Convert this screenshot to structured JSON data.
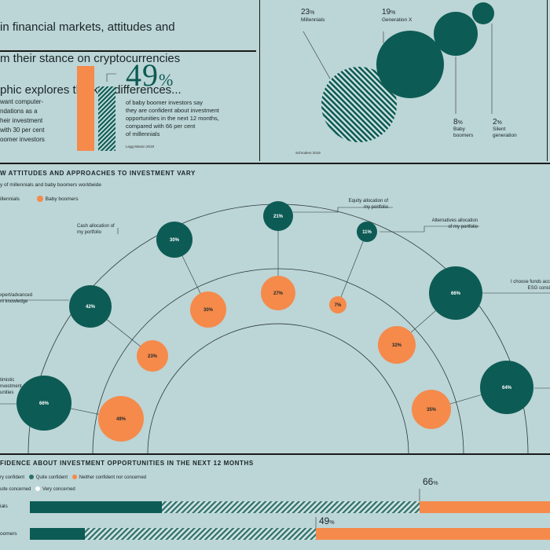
{
  "intro": {
    "line1": "in financial markets, attitudes and",
    "line2": "m their stance on cryptocurrencies",
    "line3": "phic explores the key differences..."
  },
  "confidence_panel": {
    "left_text": "want computer-\nndations as a\nheir investment\nwith 30 per cent\noomer investors",
    "big_value": "49",
    "big_unit": "%",
    "description": "of baby boomer investors say\nthey are confident about investment\nopportunities in the next 12 months,\ncompared with 66 per cent\nof millennials",
    "source": "Legg Mason 2019"
  },
  "crypto_panel": {
    "items": [
      {
        "value": "23",
        "unit": "%",
        "label": "Millennials"
      },
      {
        "value": "19",
        "unit": "%",
        "label": "Generation X"
      },
      {
        "value": "8",
        "unit": "%",
        "label": "Baby\nboomers"
      },
      {
        "value": "2",
        "unit": "%",
        "label": "Silent\ngeneration"
      }
    ],
    "source": "Schroders 2019"
  },
  "attitudes": {
    "title": "W ATTITUDES AND APPROACHES TO INVESTMENT VARY",
    "subtitle": "y of millennials and baby boomers worldwide",
    "legend": [
      {
        "label": "illennials",
        "color": "#0d5b55"
      },
      {
        "label": "Baby boomers",
        "color": "#f58a4b"
      }
    ],
    "categories": [
      {
        "label": "Equity allocation of\nmy portfolio",
        "millennials": "21%",
        "boomers": "27%"
      },
      {
        "label": "Cash allocation of\nmy portfolio",
        "millennials": "30%",
        "boomers": "30%"
      },
      {
        "label": "Alternatives allocation\nof my portfolio",
        "millennials": "11%",
        "boomers": "7%"
      },
      {
        "label": "xpert/advanced\nnt knowledge",
        "millennials": "42%",
        "boomers": "23%"
      },
      {
        "label": "I choose funds acc\nESG consi",
        "millennials": "66%",
        "boomers": "32%"
      },
      {
        "label": "timistic\nnvestment\nunities",
        "millennials": "66%",
        "boomers": "49%"
      },
      {
        "label": "",
        "millennials": "64%",
        "boomers": "35%"
      }
    ]
  },
  "confidence_bars": {
    "title": "FIDENCE ABOUT INVESTMENT OPPORTUNITIES IN THE NEXT 12 MONTHS",
    "legend": [
      {
        "label": "ry confident",
        "color": "#0d5b55"
      },
      {
        "label": "Quite confident",
        "color": "#2e6f69"
      },
      {
        "label": "Neither confident nor concerned",
        "color": "#f58a4b"
      },
      {
        "label": "uite concerned",
        "color": "#c9e0df"
      },
      {
        "label": "Very concerned",
        "color": "#ffffff"
      }
    ],
    "rows": [
      {
        "label": "ials",
        "value": "66",
        "unit": "%"
      },
      {
        "label": "oomers",
        "value": "49",
        "unit": "%"
      }
    ]
  }
}
